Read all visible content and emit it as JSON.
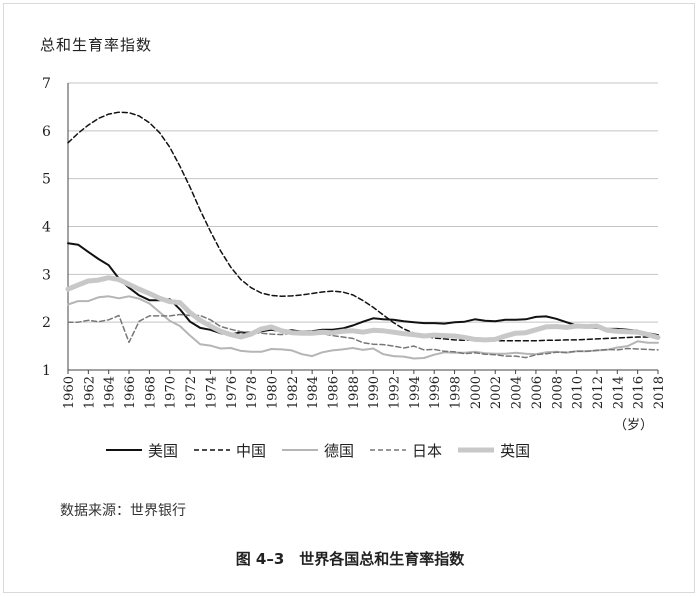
{
  "figure": {
    "source": "数据来源：世界银行",
    "caption": "图 4–3　世界各国总和生育率指数"
  },
  "chart_data": {
    "type": "line",
    "title": "",
    "ylabel": "总和生育率指数",
    "xlabel": "（岁）",
    "ylim": [
      1,
      7
    ],
    "yticks": [
      1,
      2,
      3,
      4,
      5,
      6,
      7
    ],
    "xlim": [
      1960,
      2018
    ],
    "xticks": [
      1960,
      1962,
      1964,
      1966,
      1968,
      1970,
      1972,
      1974,
      1976,
      1978,
      1980,
      1982,
      1984,
      1986,
      1988,
      1990,
      1992,
      1994,
      1996,
      1998,
      2000,
      2002,
      2004,
      2006,
      2008,
      2010,
      2012,
      2014,
      2016,
      2018
    ],
    "grid": "horizontal",
    "legend": "bottom",
    "series": [
      {
        "name": "美国",
        "color": "#111111",
        "width": 2,
        "dash": "",
        "points": [
          [
            1960,
            3.65
          ],
          [
            1961,
            3.62
          ],
          [
            1962,
            3.47
          ],
          [
            1963,
            3.32
          ],
          [
            1964,
            3.19
          ],
          [
            1965,
            2.91
          ],
          [
            1966,
            2.72
          ],
          [
            1967,
            2.56
          ],
          [
            1968,
            2.46
          ],
          [
            1969,
            2.46
          ],
          [
            1970,
            2.48
          ],
          [
            1971,
            2.27
          ],
          [
            1972,
            2.01
          ],
          [
            1973,
            1.88
          ],
          [
            1974,
            1.84
          ],
          [
            1975,
            1.77
          ],
          [
            1976,
            1.74
          ],
          [
            1977,
            1.79
          ],
          [
            1978,
            1.76
          ],
          [
            1979,
            1.81
          ],
          [
            1980,
            1.84
          ],
          [
            1981,
            1.81
          ],
          [
            1982,
            1.83
          ],
          [
            1983,
            1.8
          ],
          [
            1984,
            1.81
          ],
          [
            1985,
            1.84
          ],
          [
            1986,
            1.84
          ],
          [
            1987,
            1.87
          ],
          [
            1988,
            1.93
          ],
          [
            1989,
            2.01
          ],
          [
            1990,
            2.08
          ],
          [
            1991,
            2.06
          ],
          [
            1992,
            2.05
          ],
          [
            1993,
            2.02
          ],
          [
            1994,
            2.0
          ],
          [
            1995,
            1.98
          ],
          [
            1996,
            1.98
          ],
          [
            1997,
            1.97
          ],
          [
            1998,
            2.0
          ],
          [
            1999,
            2.01
          ],
          [
            2000,
            2.06
          ],
          [
            2001,
            2.03
          ],
          [
            2002,
            2.02
          ],
          [
            2003,
            2.05
          ],
          [
            2004,
            2.05
          ],
          [
            2005,
            2.06
          ],
          [
            2006,
            2.11
          ],
          [
            2007,
            2.12
          ],
          [
            2008,
            2.07
          ],
          [
            2009,
            2.0
          ],
          [
            2010,
            1.93
          ],
          [
            2011,
            1.89
          ],
          [
            2012,
            1.88
          ],
          [
            2013,
            1.86
          ],
          [
            2014,
            1.86
          ],
          [
            2015,
            1.84
          ],
          [
            2016,
            1.82
          ],
          [
            2017,
            1.77
          ],
          [
            2018,
            1.73
          ]
        ]
      },
      {
        "name": "中国",
        "color": "#111111",
        "width": 1.5,
        "dash": "5,3",
        "points": [
          [
            1960,
            5.75
          ],
          [
            1961,
            5.95
          ],
          [
            1962,
            6.12
          ],
          [
            1963,
            6.26
          ],
          [
            1964,
            6.35
          ],
          [
            1965,
            6.39
          ],
          [
            1966,
            6.38
          ],
          [
            1967,
            6.31
          ],
          [
            1968,
            6.17
          ],
          [
            1969,
            5.96
          ],
          [
            1970,
            5.66
          ],
          [
            1971,
            5.26
          ],
          [
            1972,
            4.82
          ],
          [
            1973,
            4.34
          ],
          [
            1974,
            3.9
          ],
          [
            1975,
            3.49
          ],
          [
            1976,
            3.15
          ],
          [
            1977,
            2.89
          ],
          [
            1978,
            2.72
          ],
          [
            1979,
            2.61
          ],
          [
            1980,
            2.56
          ],
          [
            1981,
            2.54
          ],
          [
            1982,
            2.55
          ],
          [
            1983,
            2.57
          ],
          [
            1984,
            2.6
          ],
          [
            1985,
            2.63
          ],
          [
            1986,
            2.65
          ],
          [
            1987,
            2.63
          ],
          [
            1988,
            2.57
          ],
          [
            1989,
            2.45
          ],
          [
            1990,
            2.31
          ],
          [
            1991,
            2.15
          ],
          [
            1992,
            1.99
          ],
          [
            1993,
            1.86
          ],
          [
            1994,
            1.77
          ],
          [
            1995,
            1.71
          ],
          [
            1996,
            1.67
          ],
          [
            1997,
            1.65
          ],
          [
            1998,
            1.63
          ],
          [
            1999,
            1.62
          ],
          [
            2000,
            1.62
          ],
          [
            2001,
            1.61
          ],
          [
            2002,
            1.61
          ],
          [
            2003,
            1.61
          ],
          [
            2004,
            1.61
          ],
          [
            2005,
            1.61
          ],
          [
            2006,
            1.61
          ],
          [
            2007,
            1.62
          ],
          [
            2008,
            1.62
          ],
          [
            2009,
            1.63
          ],
          [
            2010,
            1.63
          ],
          [
            2011,
            1.64
          ],
          [
            2012,
            1.65
          ],
          [
            2013,
            1.66
          ],
          [
            2014,
            1.67
          ],
          [
            2015,
            1.68
          ],
          [
            2016,
            1.69
          ],
          [
            2017,
            1.69
          ],
          [
            2018,
            1.69
          ]
        ]
      },
      {
        "name": "德国",
        "color": "#b5b5b5",
        "width": 2,
        "dash": "",
        "points": [
          [
            1960,
            2.37
          ],
          [
            1961,
            2.44
          ],
          [
            1962,
            2.44
          ],
          [
            1963,
            2.52
          ],
          [
            1964,
            2.54
          ],
          [
            1965,
            2.5
          ],
          [
            1966,
            2.54
          ],
          [
            1967,
            2.49
          ],
          [
            1968,
            2.39
          ],
          [
            1969,
            2.21
          ],
          [
            1970,
            2.03
          ],
          [
            1971,
            1.92
          ],
          [
            1972,
            1.72
          ],
          [
            1973,
            1.54
          ],
          [
            1974,
            1.51
          ],
          [
            1975,
            1.45
          ],
          [
            1976,
            1.46
          ],
          [
            1977,
            1.4
          ],
          [
            1978,
            1.38
          ],
          [
            1979,
            1.38
          ],
          [
            1980,
            1.44
          ],
          [
            1981,
            1.43
          ],
          [
            1982,
            1.41
          ],
          [
            1983,
            1.33
          ],
          [
            1984,
            1.29
          ],
          [
            1985,
            1.37
          ],
          [
            1986,
            1.41
          ],
          [
            1987,
            1.43
          ],
          [
            1988,
            1.46
          ],
          [
            1989,
            1.42
          ],
          [
            1990,
            1.45
          ],
          [
            1991,
            1.33
          ],
          [
            1992,
            1.29
          ],
          [
            1993,
            1.28
          ],
          [
            1994,
            1.24
          ],
          [
            1995,
            1.25
          ],
          [
            1996,
            1.32
          ],
          [
            1997,
            1.37
          ],
          [
            1998,
            1.36
          ],
          [
            1999,
            1.36
          ],
          [
            2000,
            1.38
          ],
          [
            2001,
            1.35
          ],
          [
            2002,
            1.34
          ],
          [
            2003,
            1.34
          ],
          [
            2004,
            1.36
          ],
          [
            2005,
            1.34
          ],
          [
            2006,
            1.33
          ],
          [
            2007,
            1.37
          ],
          [
            2008,
            1.38
          ],
          [
            2009,
            1.36
          ],
          [
            2010,
            1.39
          ],
          [
            2011,
            1.39
          ],
          [
            2012,
            1.41
          ],
          [
            2013,
            1.42
          ],
          [
            2014,
            1.47
          ],
          [
            2015,
            1.5
          ],
          [
            2016,
            1.6
          ],
          [
            2017,
            1.57
          ],
          [
            2018,
            1.57
          ]
        ]
      },
      {
        "name": "日本",
        "color": "#777777",
        "width": 1.5,
        "dash": "5,3",
        "points": [
          [
            1960,
            2.0
          ],
          [
            1961,
            2.0
          ],
          [
            1962,
            2.04
          ],
          [
            1963,
            2.01
          ],
          [
            1964,
            2.05
          ],
          [
            1965,
            2.14
          ],
          [
            1966,
            1.58
          ],
          [
            1967,
            2.02
          ],
          [
            1968,
            2.13
          ],
          [
            1969,
            2.13
          ],
          [
            1970,
            2.13
          ],
          [
            1971,
            2.16
          ],
          [
            1972,
            2.14
          ],
          [
            1973,
            2.14
          ],
          [
            1974,
            2.05
          ],
          [
            1975,
            1.91
          ],
          [
            1976,
            1.85
          ],
          [
            1977,
            1.8
          ],
          [
            1978,
            1.79
          ],
          [
            1979,
            1.77
          ],
          [
            1980,
            1.75
          ],
          [
            1981,
            1.74
          ],
          [
            1982,
            1.77
          ],
          [
            1983,
            1.8
          ],
          [
            1984,
            1.81
          ],
          [
            1985,
            1.76
          ],
          [
            1986,
            1.72
          ],
          [
            1987,
            1.69
          ],
          [
            1988,
            1.66
          ],
          [
            1989,
            1.57
          ],
          [
            1990,
            1.54
          ],
          [
            1991,
            1.53
          ],
          [
            1992,
            1.5
          ],
          [
            1993,
            1.46
          ],
          [
            1994,
            1.5
          ],
          [
            1995,
            1.42
          ],
          [
            1996,
            1.43
          ],
          [
            1997,
            1.39
          ],
          [
            1998,
            1.38
          ],
          [
            1999,
            1.34
          ],
          [
            2000,
            1.36
          ],
          [
            2001,
            1.33
          ],
          [
            2002,
            1.32
          ],
          [
            2003,
            1.29
          ],
          [
            2004,
            1.29
          ],
          [
            2005,
            1.26
          ],
          [
            2006,
            1.32
          ],
          [
            2007,
            1.34
          ],
          [
            2008,
            1.37
          ],
          [
            2009,
            1.37
          ],
          [
            2010,
            1.39
          ],
          [
            2011,
            1.39
          ],
          [
            2012,
            1.41
          ],
          [
            2013,
            1.43
          ],
          [
            2014,
            1.42
          ],
          [
            2015,
            1.45
          ],
          [
            2016,
            1.44
          ],
          [
            2017,
            1.43
          ],
          [
            2018,
            1.42
          ]
        ]
      },
      {
        "name": "英国",
        "color": "#c8c8c8",
        "width": 5,
        "dash": "",
        "points": [
          [
            1960,
            2.69
          ],
          [
            1961,
            2.78
          ],
          [
            1962,
            2.86
          ],
          [
            1963,
            2.88
          ],
          [
            1964,
            2.93
          ],
          [
            1965,
            2.89
          ],
          [
            1966,
            2.79
          ],
          [
            1967,
            2.69
          ],
          [
            1968,
            2.6
          ],
          [
            1969,
            2.5
          ],
          [
            1970,
            2.43
          ],
          [
            1971,
            2.41
          ],
          [
            1972,
            2.2
          ],
          [
            1973,
            2.04
          ],
          [
            1974,
            1.92
          ],
          [
            1975,
            1.81
          ],
          [
            1976,
            1.74
          ],
          [
            1977,
            1.69
          ],
          [
            1978,
            1.75
          ],
          [
            1979,
            1.86
          ],
          [
            1980,
            1.9
          ],
          [
            1981,
            1.82
          ],
          [
            1982,
            1.78
          ],
          [
            1983,
            1.77
          ],
          [
            1984,
            1.77
          ],
          [
            1985,
            1.79
          ],
          [
            1986,
            1.78
          ],
          [
            1987,
            1.81
          ],
          [
            1988,
            1.82
          ],
          [
            1989,
            1.79
          ],
          [
            1990,
            1.83
          ],
          [
            1991,
            1.82
          ],
          [
            1992,
            1.79
          ],
          [
            1993,
            1.76
          ],
          [
            1994,
            1.74
          ],
          [
            1995,
            1.71
          ],
          [
            1996,
            1.73
          ],
          [
            1997,
            1.72
          ],
          [
            1998,
            1.71
          ],
          [
            1999,
            1.68
          ],
          [
            2000,
            1.64
          ],
          [
            2001,
            1.63
          ],
          [
            2002,
            1.64
          ],
          [
            2003,
            1.71
          ],
          [
            2004,
            1.77
          ],
          [
            2005,
            1.78
          ],
          [
            2006,
            1.84
          ],
          [
            2007,
            1.9
          ],
          [
            2008,
            1.91
          ],
          [
            2009,
            1.89
          ],
          [
            2010,
            1.92
          ],
          [
            2011,
            1.91
          ],
          [
            2012,
            1.92
          ],
          [
            2013,
            1.83
          ],
          [
            2014,
            1.81
          ],
          [
            2015,
            1.8
          ],
          [
            2016,
            1.79
          ],
          [
            2017,
            1.74
          ],
          [
            2018,
            1.68
          ]
        ]
      }
    ]
  }
}
